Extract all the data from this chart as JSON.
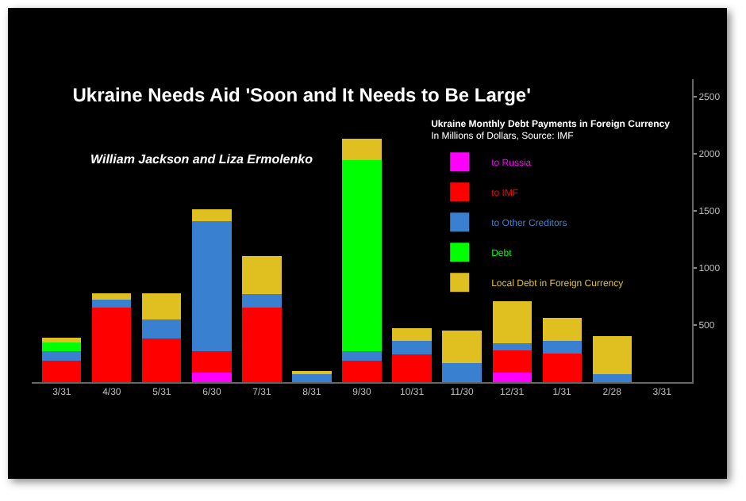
{
  "chart_data": {
    "type": "bar",
    "stacked": true,
    "title": "Ukraine Needs Aid 'Soon and It Needs to Be Large'",
    "subtitle": "William Jackson and Liza Ermolenko",
    "legend_title": "Ukraine Monthly Debt Payments in Foreign Currency",
    "annotations": [
      "In Millions of Dollars, Source: IMF"
    ],
    "categories": [
      "3/31",
      "4/30",
      "5/31",
      "6/30",
      "7/31",
      "8/31",
      "9/30",
      "10/31",
      "11/30",
      "12/31",
      "1/31",
      "2/28",
      "3/31"
    ],
    "series": [
      {
        "name": "to Russia",
        "color": "#ff00ff",
        "values": [
          0,
          0,
          0,
          80,
          0,
          0,
          0,
          0,
          0,
          80,
          0,
          0,
          0
        ]
      },
      {
        "name": "to IMF",
        "color": "#ff0000",
        "values": [
          190,
          650,
          380,
          190,
          650,
          0,
          190,
          240,
          0,
          200,
          250,
          0,
          0
        ]
      },
      {
        "name": "to Other Creditors",
        "color": "#3a80d0",
        "values": [
          80,
          70,
          170,
          1140,
          120,
          80,
          80,
          120,
          170,
          60,
          110,
          70,
          0
        ]
      },
      {
        "name": "Debt",
        "color": "#00ff00",
        "values": [
          80,
          0,
          0,
          0,
          0,
          0,
          1670,
          0,
          0,
          0,
          0,
          0,
          0
        ]
      },
      {
        "name": "Local Debt in Foreign Currency",
        "color": "#e0c020",
        "values": [
          40,
          60,
          230,
          100,
          330,
          20,
          190,
          110,
          280,
          370,
          200,
          330,
          0
        ]
      }
    ],
    "ylim": [
      0,
      2650
    ],
    "yticks": [
      500,
      1000,
      1500,
      2000,
      2500
    ],
    "grid": false,
    "legend": "top right"
  }
}
